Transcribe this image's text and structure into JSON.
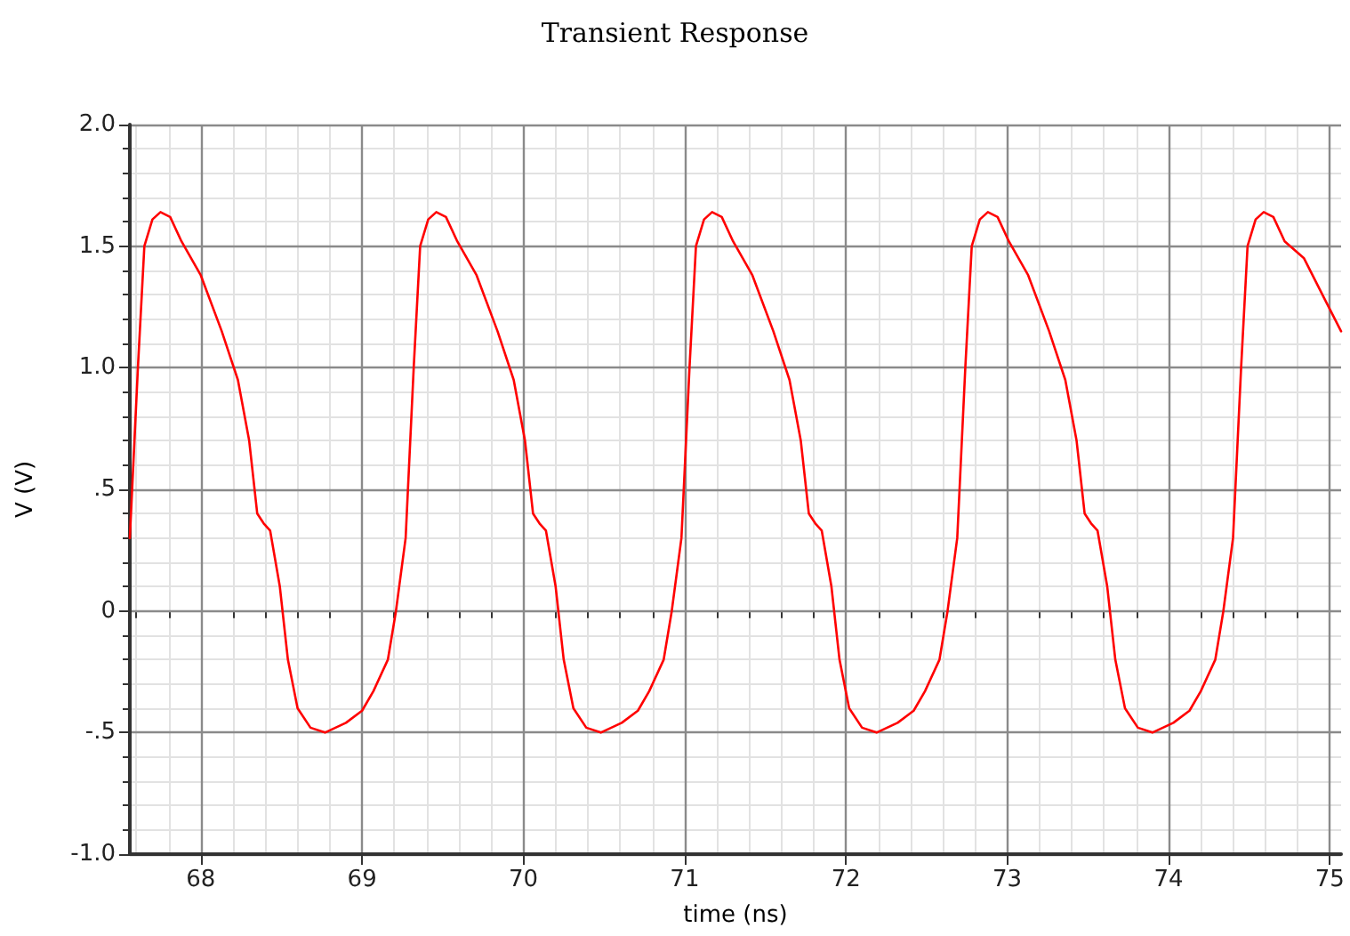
{
  "chart_data": {
    "type": "line",
    "title": "Transient Response",
    "xlabel": "time (ns)",
    "ylabel": "V (V)",
    "xlim": [
      67.56,
      75.07
    ],
    "xticks": [
      68,
      69,
      70,
      71,
      72,
      73,
      74,
      75
    ],
    "ylim": [
      -1,
      2
    ],
    "yticks": [
      {
        "value": -1,
        "label": "-1.0"
      },
      {
        "value": -0.5,
        "label": "-.5"
      },
      0,
      {
        "value": 0.5,
        "label": ".5"
      },
      {
        "value": 1,
        "label": "1.0"
      },
      {
        "value": 1.5,
        "label": "1.5"
      },
      {
        "value": 2,
        "label": "2.0"
      }
    ],
    "grid": true,
    "marker": "none",
    "line_style": "solid",
    "series": [
      {
        "color": "#ff0000",
        "x": [
          67.56,
          67.61,
          67.65,
          67.7,
          67.75,
          67.81,
          67.88,
          68.0,
          68.13,
          68.23,
          68.3,
          68.35,
          68.39,
          68.43,
          68.49,
          68.54,
          68.6,
          68.68,
          68.77,
          68.9,
          69.0,
          69.07,
          69.16,
          69.21,
          69.27,
          69.32,
          69.36,
          69.41,
          69.46,
          69.52,
          69.59,
          69.71,
          69.84,
          69.94,
          70.01,
          70.06,
          70.1,
          70.14,
          70.2,
          70.25,
          70.31,
          70.39,
          70.48,
          70.61,
          70.71,
          70.78,
          70.87,
          70.92,
          70.98,
          71.03,
          71.07,
          71.12,
          71.17,
          71.23,
          71.3,
          71.42,
          71.55,
          71.65,
          71.72,
          71.77,
          71.81,
          71.85,
          71.91,
          71.96,
          72.02,
          72.1,
          72.19,
          72.32,
          72.42,
          72.49,
          72.58,
          72.63,
          72.69,
          72.74,
          72.78,
          72.83,
          72.88,
          72.94,
          73.01,
          73.13,
          73.26,
          73.36,
          73.43,
          73.48,
          73.52,
          73.56,
          73.62,
          73.67,
          73.73,
          73.81,
          73.9,
          74.03,
          74.13,
          74.2,
          74.29,
          74.34,
          74.4,
          74.45,
          74.49,
          74.54,
          74.59,
          74.65,
          74.72,
          74.84,
          74.97,
          75.07
        ],
        "values": [
          0.3,
          1.0,
          1.5,
          1.61,
          1.64,
          1.62,
          1.52,
          1.38,
          1.15,
          0.95,
          0.7,
          0.4,
          0.36,
          0.33,
          0.1,
          -0.2,
          -0.4,
          -0.48,
          -0.5,
          -0.46,
          -0.41,
          -0.33,
          -0.2,
          0,
          0.3,
          1.0,
          1.5,
          1.61,
          1.64,
          1.62,
          1.52,
          1.38,
          1.15,
          0.95,
          0.7,
          0.4,
          0.36,
          0.33,
          0.1,
          -0.2,
          -0.4,
          -0.48,
          -0.5,
          -0.46,
          -0.41,
          -0.33,
          -0.2,
          0,
          0.3,
          1.0,
          1.5,
          1.61,
          1.64,
          1.62,
          1.52,
          1.38,
          1.15,
          0.95,
          0.7,
          0.4,
          0.36,
          0.33,
          0.1,
          -0.2,
          -0.4,
          -0.48,
          -0.5,
          -0.46,
          -0.41,
          -0.33,
          -0.2,
          0,
          0.3,
          1.0,
          1.5,
          1.61,
          1.64,
          1.62,
          1.52,
          1.38,
          1.15,
          0.95,
          0.7,
          0.4,
          0.36,
          0.33,
          0.1,
          -0.2,
          -0.4,
          -0.48,
          -0.5,
          -0.46,
          -0.41,
          -0.33,
          -0.2,
          0,
          0.3,
          1.0,
          1.5,
          1.61,
          1.64,
          1.62,
          1.52,
          1.45,
          1.28,
          1.15
        ]
      }
    ]
  }
}
